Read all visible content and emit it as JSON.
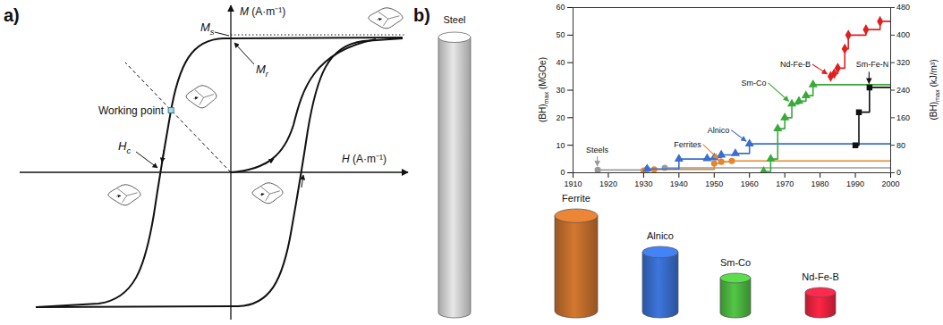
{
  "panel_a": {
    "letter": "a)",
    "x_axis": {
      "symbol": "H",
      "unit": "(A·m⁻¹)"
    },
    "y_axis": {
      "symbol": "M",
      "unit": "(A·m⁻¹)"
    },
    "saturation": {
      "symbol": "M",
      "sub": "s"
    },
    "remanence": {
      "symbol": "M",
      "sub": "r"
    },
    "coercivity": {
      "symbol": "H",
      "sub": "c"
    },
    "working_point": "Working point"
  },
  "panel_b": {
    "letter": "b)",
    "cylinders": [
      {
        "label": "Steel",
        "color": "#c8c8c8"
      },
      {
        "label": "Ferrite",
        "color": "#b8682a"
      },
      {
        "label": "Alnico",
        "color": "#3566c0"
      },
      {
        "label": "Sm-Co",
        "color": "#48ac3c"
      },
      {
        "label": "Nd-Fe-B",
        "color": "#e0203c"
      }
    ]
  },
  "chart_data": {
    "type": "line",
    "line_style": "step",
    "grid": false,
    "ylabel": {
      "text": "(BH)",
      "sub": "max",
      "unit": "(MGOe)"
    },
    "y2label": {
      "text": "(BH)",
      "sub": "max",
      "unit": "(kJ/m³)"
    },
    "xlim": [
      1910,
      2000
    ],
    "xticks": [
      1910,
      1920,
      1930,
      1940,
      1950,
      1960,
      1970,
      1980,
      1990,
      2000
    ],
    "ylim": [
      0,
      60
    ],
    "yticks": [
      0,
      10,
      20,
      30,
      40,
      50,
      60
    ],
    "y2lim": [
      0,
      480
    ],
    "y2ticks": [
      0,
      80,
      160,
      240,
      320,
      400,
      480
    ],
    "series": [
      {
        "name": "Steels",
        "color": "#9a9a9a",
        "marker": "circle",
        "x": [
          1917,
          1931,
          1936
        ],
        "values": [
          1,
          1.3,
          1.8
        ]
      },
      {
        "name": "Ferrites",
        "color": "#e8852a",
        "marker": "circle",
        "x": [
          1930,
          1933,
          1950,
          1952,
          1955
        ],
        "values": [
          0.8,
          1.2,
          3.4,
          4,
          4.3
        ]
      },
      {
        "name": "Alnico",
        "color": "#3a6fd0",
        "marker": "triangle",
        "x": [
          1931,
          1940,
          1948,
          1950,
          1952,
          1956,
          1960
        ],
        "values": [
          1.4,
          5,
          5.2,
          5.5,
          6.5,
          7,
          10.5
        ]
      },
      {
        "name": "Sm-Co",
        "color": "#3aaa3a",
        "marker": "triangle",
        "x": [
          1964,
          1966,
          1968,
          1970,
          1972,
          1974,
          1976,
          1978
        ],
        "values": [
          0.5,
          5,
          16,
          20,
          25,
          26,
          28,
          32
        ]
      },
      {
        "name": "Nd-Fe-B",
        "color": "#e02020",
        "marker": "diamond",
        "x": [
          1983,
          1984,
          1985,
          1987,
          1988,
          1993,
          1997
        ],
        "values": [
          35,
          36,
          38,
          45,
          50,
          52,
          55
        ]
      },
      {
        "name": "Sm-Fe-N",
        "color": "#111111",
        "marker": "square",
        "x": [
          1990,
          1991,
          1994
        ],
        "values": [
          10,
          22,
          31
        ]
      }
    ]
  }
}
